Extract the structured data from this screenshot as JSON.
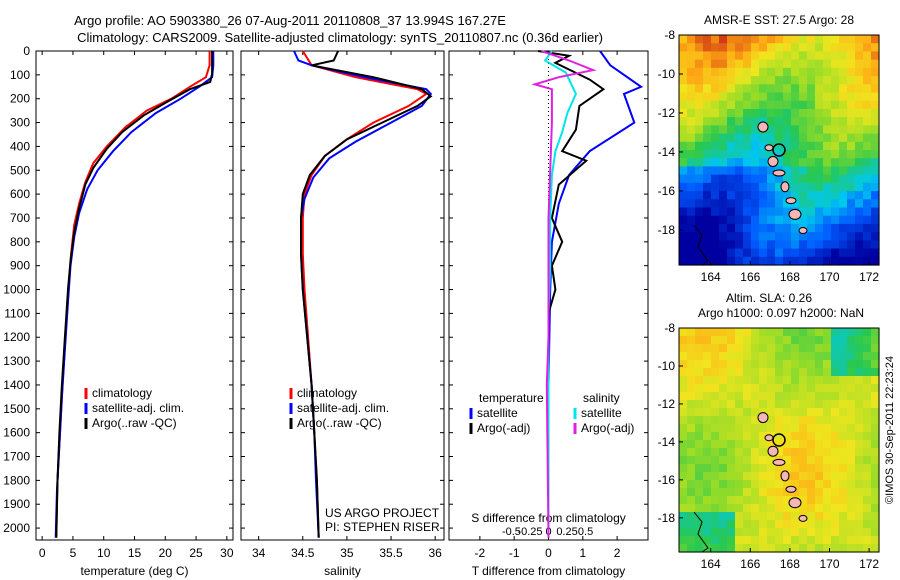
{
  "header": {
    "line1": "Argo profile: AO 5903380_26 07-Aug-2011 20110808_37 13.994S 167.27E",
    "line2": "Climatology: CARS2009. Satellite-adjusted climatology: synTS_20110807.nc (0.36d earlier)"
  },
  "colors": {
    "clim": "#ff0000",
    "sat": "#0000ff",
    "argo": "#000000",
    "sat_s": "#00e5ee",
    "argo_s": "#e020e0"
  },
  "chart_data": [
    {
      "type": "line",
      "id": "temperature",
      "xlabel": "temperature (deg C)",
      "xlim": [
        -1,
        31
      ],
      "ylim": [
        0,
        2050
      ],
      "xticks": [
        0,
        5,
        10,
        15,
        20,
        25,
        30
      ],
      "yticks": [
        0,
        100,
        200,
        300,
        400,
        500,
        600,
        700,
        800,
        900,
        1000,
        1100,
        1200,
        1300,
        1400,
        1500,
        1600,
        1700,
        1800,
        1900,
        2000
      ],
      "legend": [
        "climatology",
        "satellite-adj. clim.",
        "Argo(..raw -QC)"
      ],
      "series": [
        {
          "name": "climatology",
          "color": "red",
          "points": [
            [
              27.2,
              0
            ],
            [
              27.2,
              60
            ],
            [
              26.6,
              110
            ],
            [
              24,
              150
            ],
            [
              21,
              200
            ],
            [
              17,
              250
            ],
            [
              13.5,
              320
            ],
            [
              10.5,
              400
            ],
            [
              8.3,
              470
            ],
            [
              7,
              550
            ],
            [
              6,
              640
            ],
            [
              5.2,
              730
            ],
            [
              4.7,
              850
            ],
            [
              4.3,
              1000
            ],
            [
              3.8,
              1200
            ],
            [
              3.3,
              1400
            ],
            [
              2.9,
              1600
            ],
            [
              2.5,
              1800
            ],
            [
              2.3,
              2040
            ]
          ]
        },
        {
          "name": "satellite-adj. clim.",
          "color": "blue",
          "points": [
            [
              27.8,
              0
            ],
            [
              27.8,
              60
            ],
            [
              27.6,
              110
            ],
            [
              25.5,
              150
            ],
            [
              22.5,
              200
            ],
            [
              18.5,
              260
            ],
            [
              14.5,
              340
            ],
            [
              11.5,
              420
            ],
            [
              9,
              500
            ],
            [
              7.3,
              580
            ],
            [
              6,
              680
            ],
            [
              5.2,
              780
            ],
            [
              4.6,
              900
            ],
            [
              4.2,
              1050
            ],
            [
              3.7,
              1250
            ],
            [
              3.2,
              1450
            ],
            [
              2.8,
              1650
            ],
            [
              2.4,
              1850
            ],
            [
              2.2,
              2040
            ]
          ]
        },
        {
          "name": "Argo(..raw -QC)",
          "color": "black",
          "points": [
            [
              27.6,
              0
            ],
            [
              27.6,
              95
            ],
            [
              27.3,
              130
            ],
            [
              24,
              160
            ],
            [
              20.5,
              210
            ],
            [
              16.5,
              270
            ],
            [
              13,
              340
            ],
            [
              10.5,
              410
            ],
            [
              8.3,
              490
            ],
            [
              7,
              560
            ],
            [
              6,
              660
            ],
            [
              5.2,
              760
            ],
            [
              4.6,
              880
            ],
            [
              4.2,
              1000
            ],
            [
              3.7,
              1200
            ],
            [
              3.2,
              1400
            ],
            [
              2.8,
              1600
            ],
            [
              2.5,
              1800
            ],
            [
              2.3,
              2040
            ]
          ]
        }
      ]
    },
    {
      "type": "line",
      "id": "salinity",
      "xlabel": "salinity",
      "xlim": [
        33.8,
        36.1
      ],
      "ylim": [
        0,
        2050
      ],
      "xticks": [
        34,
        34.5,
        35,
        35.5,
        36
      ],
      "legend": [
        "climatology",
        "satellite-adj. clim.",
        "Argo(..raw -QC)"
      ],
      "series": [
        {
          "name": "climatology",
          "color": "red",
          "points": [
            [
              34.5,
              0
            ],
            [
              34.6,
              60
            ],
            [
              35.1,
              110
            ],
            [
              35.8,
              160
            ],
            [
              35.9,
              180
            ],
            [
              35.7,
              230
            ],
            [
              35.3,
              300
            ],
            [
              35,
              370
            ],
            [
              34.75,
              440
            ],
            [
              34.6,
              520
            ],
            [
              34.52,
              600
            ],
            [
              34.5,
              700
            ],
            [
              34.5,
              850
            ],
            [
              34.52,
              1000
            ],
            [
              34.56,
              1200
            ],
            [
              34.6,
              1400
            ],
            [
              34.63,
              1600
            ],
            [
              34.66,
              1800
            ],
            [
              34.68,
              2040
            ]
          ]
        },
        {
          "name": "satellite-adj. clim.",
          "color": "blue",
          "points": [
            [
              34.4,
              0
            ],
            [
              34.45,
              40
            ],
            [
              34.6,
              60
            ],
            [
              35.2,
              110
            ],
            [
              35.9,
              160
            ],
            [
              35.95,
              180
            ],
            [
              35.85,
              230
            ],
            [
              35.5,
              300
            ],
            [
              35.1,
              380
            ],
            [
              34.8,
              450
            ],
            [
              34.62,
              530
            ],
            [
              34.52,
              620
            ],
            [
              34.48,
              700
            ],
            [
              34.48,
              850
            ],
            [
              34.5,
              1000
            ],
            [
              34.55,
              1200
            ],
            [
              34.6,
              1400
            ],
            [
              34.63,
              1600
            ],
            [
              34.65,
              1800
            ],
            [
              34.68,
              2040
            ]
          ]
        },
        {
          "name": "Argo(..raw -QC)",
          "color": "black",
          "points": [
            [
              34.9,
              0
            ],
            [
              34.85,
              40
            ],
            [
              34.6,
              60
            ],
            [
              35.3,
              110
            ],
            [
              35.85,
              160
            ],
            [
              35.95,
              190
            ],
            [
              35.8,
              230
            ],
            [
              35.4,
              300
            ],
            [
              35,
              370
            ],
            [
              34.75,
              440
            ],
            [
              34.58,
              520
            ],
            [
              34.5,
              600
            ],
            [
              34.48,
              700
            ],
            [
              34.48,
              850
            ],
            [
              34.5,
              1000
            ],
            [
              34.55,
              1200
            ],
            [
              34.6,
              1400
            ],
            [
              34.63,
              1600
            ],
            [
              34.66,
              1800
            ],
            [
              34.68,
              2040
            ]
          ]
        }
      ],
      "annotation": [
        "US ARGO PROJECT",
        "PI: STEPHEN RISER"
      ]
    },
    {
      "type": "line",
      "id": "difference",
      "xlabel": "T difference from climatology",
      "xlabel_top": "S difference from climatology",
      "xlim": [
        -2.9,
        2.9
      ],
      "ylim": [
        0,
        2050
      ],
      "xticks": [
        -2,
        -1,
        0,
        1,
        2
      ],
      "xticks_s": [
        -0.5,
        -0.25,
        0,
        0.25,
        0.5
      ],
      "legend_titles": [
        "temperature",
        "salinity"
      ],
      "legend": [
        "satellite",
        "Argo(-adj)",
        "satellite",
        "Argo(-adj)"
      ],
      "series": [
        {
          "name": "satellite",
          "color": "blue",
          "points": [
            [
              1.5,
              0
            ],
            [
              1.8,
              60
            ],
            [
              2.7,
              150
            ],
            [
              2.2,
              180
            ],
            [
              2.5,
              300
            ],
            [
              1.2,
              420
            ],
            [
              0.6,
              520
            ],
            [
              0.3,
              640
            ],
            [
              0.1,
              800
            ],
            [
              0.05,
              1000
            ],
            [
              0,
              1400
            ],
            [
              0,
              2040
            ]
          ]
        },
        {
          "name": "Argo(-adj)",
          "color": "black",
          "points": [
            [
              -0.3,
              0
            ],
            [
              0.6,
              20
            ],
            [
              0.2,
              50
            ],
            [
              1.2,
              120
            ],
            [
              1.6,
              160
            ],
            [
              0.9,
              230
            ],
            [
              0.8,
              330
            ],
            [
              0.4,
              420
            ],
            [
              1.1,
              460
            ],
            [
              0.3,
              560
            ],
            [
              0.1,
              700
            ],
            [
              0.4,
              800
            ],
            [
              0.1,
              900
            ],
            [
              0.2,
              1000
            ],
            [
              0,
              1100
            ],
            [
              0,
              2040
            ]
          ]
        },
        {
          "name": "satellite S",
          "color": "cyan",
          "points": [
            [
              0.1,
              0
            ],
            [
              -0.1,
              40
            ],
            [
              0.5,
              90
            ],
            [
              0.8,
              180
            ],
            [
              0.55,
              260
            ],
            [
              0.4,
              340
            ],
            [
              0.2,
              420
            ],
            [
              0.1,
              520
            ],
            [
              0.05,
              700
            ],
            [
              0.05,
              900
            ],
            [
              0,
              1100
            ],
            [
              0,
              2040
            ]
          ]
        },
        {
          "name": "Argo(-adj) S",
          "color": "magenta",
          "points": [
            [
              -0.2,
              0
            ],
            [
              0.6,
              40
            ],
            [
              1.3,
              80
            ],
            [
              0.3,
              110
            ],
            [
              -0.4,
              140
            ],
            [
              0.1,
              160
            ],
            [
              0.1,
              300
            ],
            [
              0.05,
              500
            ],
            [
              0,
              700
            ],
            [
              0,
              1200
            ],
            [
              -0.05,
              1400
            ],
            [
              0,
              2040
            ]
          ]
        }
      ]
    }
  ],
  "maps": {
    "top": {
      "title": "AMSR-E SST: 27.5 Argo: 28",
      "xticks": [
        164,
        166,
        168,
        170,
        172
      ],
      "yticks": [
        -8,
        -10,
        -12,
        -14,
        -16,
        -18
      ]
    },
    "bottom": {
      "title1": "Altim. SLA: 0.26",
      "title2": "Argo h1000: 0.097 h2000: NaN",
      "xticks": [
        164,
        166,
        168,
        170,
        172
      ],
      "yticks": [
        -8,
        -10,
        -12,
        -14,
        -16,
        -18
      ]
    }
  },
  "watermark": "©IMOS 30-Sep-2011 22:23:24"
}
